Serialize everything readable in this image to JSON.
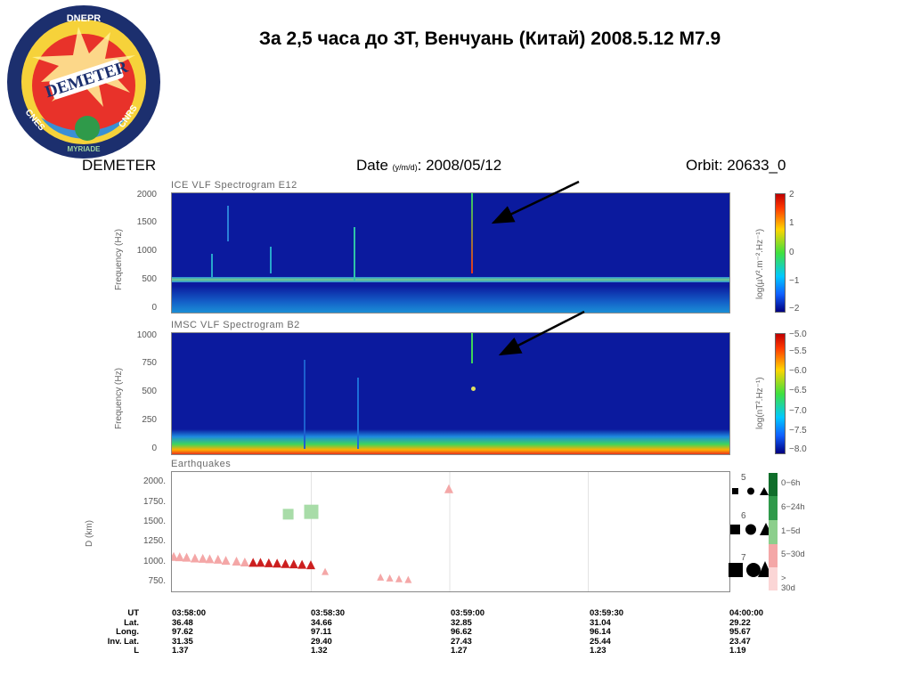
{
  "slide_title": "За 2,5 часа до ЗТ, Венчуань (Китай) 2008.5.12 М7.9",
  "logo": {
    "top": "DNEPR",
    "main": "DEMETER",
    "left": "CNES",
    "right": "CNRS",
    "bottom": "MYRIADE"
  },
  "header": {
    "satellite": "DEMETER",
    "date_label": "Date",
    "date_unit": "(y/m/d)",
    "date_value": ": 2008/05/12",
    "orbit": "Orbit: 20633_0"
  },
  "colors": {
    "spectrogram_background": "#0b1a9e",
    "earthquake_marker": "#cc1f1f",
    "earthquake_marker_light": "#f4a7a7",
    "distant_event_marker": "#a8dca8"
  },
  "chart_data": [
    {
      "type": "heatmap",
      "title": "ICE VLF Spectrogram E12",
      "ylabel": "Frequency (Hz)",
      "yticks": [
        "2000",
        "1500",
        "1000",
        "500",
        "0"
      ],
      "ylim": [
        0,
        2000
      ],
      "colorbar_label": "log(µV².m⁻².Hz⁻¹)",
      "colorbar_ticks": [
        "2",
        "1",
        "0",
        "−1",
        "−2"
      ],
      "colorbar_range": [
        -2,
        2
      ],
      "features": {
        "horizontal_line_hz": 500,
        "arrow_marked_time": "03:59:00"
      }
    },
    {
      "type": "heatmap",
      "title": "IMSC VLF Spectrogram B2",
      "ylabel": "Frequency (Hz)",
      "yticks": [
        "1000",
        "750",
        "500",
        "250",
        "0"
      ],
      "ylim": [
        0,
        1000
      ],
      "colorbar_label": "log(nT².Hz⁻¹)",
      "colorbar_ticks": [
        "−5.0",
        "−5.5",
        "−6.0",
        "−6.5",
        "−7.0",
        "−7.5",
        "−8.0"
      ],
      "colorbar_range": [
        -8.0,
        -5.0
      ],
      "features": {
        "arrow_marked_time": "03:59:00"
      }
    },
    {
      "type": "scatter",
      "title": "Earthquakes",
      "ylabel": "D (km)",
      "yticks": [
        "2000.",
        "1750.",
        "1500.",
        "1250.",
        "1000.",
        "750."
      ],
      "ylim": [
        650,
        2150
      ],
      "x_time_range": [
        "03:58:00",
        "04:00:00"
      ],
      "series": [
        {
          "marker": "triangle",
          "points": [
            {
              "t": "03:58:00.2",
              "d": 1090
            },
            {
              "t": "03:58:01.5",
              "d": 1085
            },
            {
              "t": "03:58:03.0",
              "d": 1080
            },
            {
              "t": "03:58:04.8",
              "d": 1070
            },
            {
              "t": "03:58:06.5",
              "d": 1065
            },
            {
              "t": "03:58:08.0",
              "d": 1060
            },
            {
              "t": "03:58:09.8",
              "d": 1055
            },
            {
              "t": "03:58:11.5",
              "d": 1040
            },
            {
              "t": "03:58:13.8",
              "d": 1030
            },
            {
              "t": "03:58:15.6",
              "d": 1020
            },
            {
              "t": "03:58:17.4",
              "d": 1015
            },
            {
              "t": "03:58:19.0",
              "d": 1015
            },
            {
              "t": "03:58:20.8",
              "d": 1010
            },
            {
              "t": "03:58:22.6",
              "d": 1005
            },
            {
              "t": "03:58:24.4",
              "d": 1000
            },
            {
              "t": "03:58:26.2",
              "d": 995
            },
            {
              "t": "03:58:28.0",
              "d": 990
            },
            {
              "t": "03:58:29.9",
              "d": 985
            },
            {
              "t": "03:58:33.0",
              "d": 900
            },
            {
              "t": "03:58:45.0",
              "d": 830
            },
            {
              "t": "03:58:47.0",
              "d": 820
            },
            {
              "t": "03:58:49.0",
              "d": 810
            },
            {
              "t": "03:58:51.0",
              "d": 800
            },
            {
              "t": "03:58:59.8",
              "d": 1940
            }
          ]
        },
        {
          "marker": "square",
          "points": [
            {
              "t": "03:58:25.0",
              "d": 1620
            },
            {
              "t": "03:58:30.0",
              "d": 1650
            }
          ]
        }
      ],
      "magnitude_legend": [
        "5",
        "6",
        "7"
      ],
      "time_legend": [
        "0−6h",
        "6−24h",
        "1−5d",
        "5−30d",
        "> 30d"
      ]
    }
  ],
  "orbit_table": {
    "labels": [
      "UT",
      "Lat.",
      "Long.",
      "Inv. Lat.",
      "L"
    ],
    "columns": [
      [
        "03:58:00",
        "36.48",
        "97.62",
        "31.35",
        "1.37"
      ],
      [
        "03:58:30",
        "34.66",
        "97.11",
        "29.40",
        "1.32"
      ],
      [
        "03:59:00",
        "32.85",
        "96.62",
        "27.43",
        "1.27"
      ],
      [
        "03:59:30",
        "31.04",
        "96.14",
        "25.44",
        "1.23"
      ],
      [
        "04:00:00",
        "29.22",
        "95.67",
        "23.47",
        "1.19"
      ]
    ]
  }
}
